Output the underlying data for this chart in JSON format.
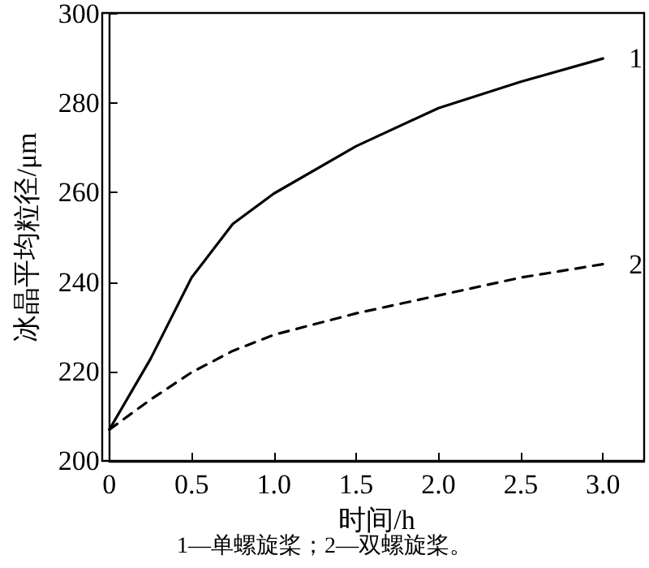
{
  "chart_data": {
    "type": "line",
    "xlabel": "时间/h",
    "ylabel": "冰晶平均粒径/μm",
    "annotations": [
      "1—单螺旋桨；2—双螺旋桨。"
    ],
    "x": [
      0,
      0.25,
      0.5,
      0.75,
      1.0,
      1.5,
      2.0,
      2.5,
      3.0
    ],
    "series": [
      {
        "name": "1",
        "color": "#000000",
        "line_style": "solid",
        "values": [
          207,
          222.8,
          241,
          253,
          259.8,
          270.4,
          278.9,
          284.8,
          290
        ]
      },
      {
        "name": "2",
        "color": "#000000",
        "line_style": "dashed",
        "values": [
          207,
          213.7,
          219.8,
          224.6,
          228.2,
          233,
          237,
          241,
          244
        ]
      }
    ],
    "xlim": [
      0,
      3.25
    ],
    "xticks": [
      0,
      0.5,
      {
        "value": 1,
        "label": "1.0"
      },
      1.5,
      {
        "value": 2,
        "label": "2.0"
      },
      2.5,
      {
        "value": 3,
        "label": "3.0"
      }
    ],
    "ylim": [
      200,
      300
    ],
    "yticks": [
      200,
      220,
      240,
      260,
      280,
      300
    ],
    "grid": false,
    "legend": false,
    "marker": "none"
  }
}
